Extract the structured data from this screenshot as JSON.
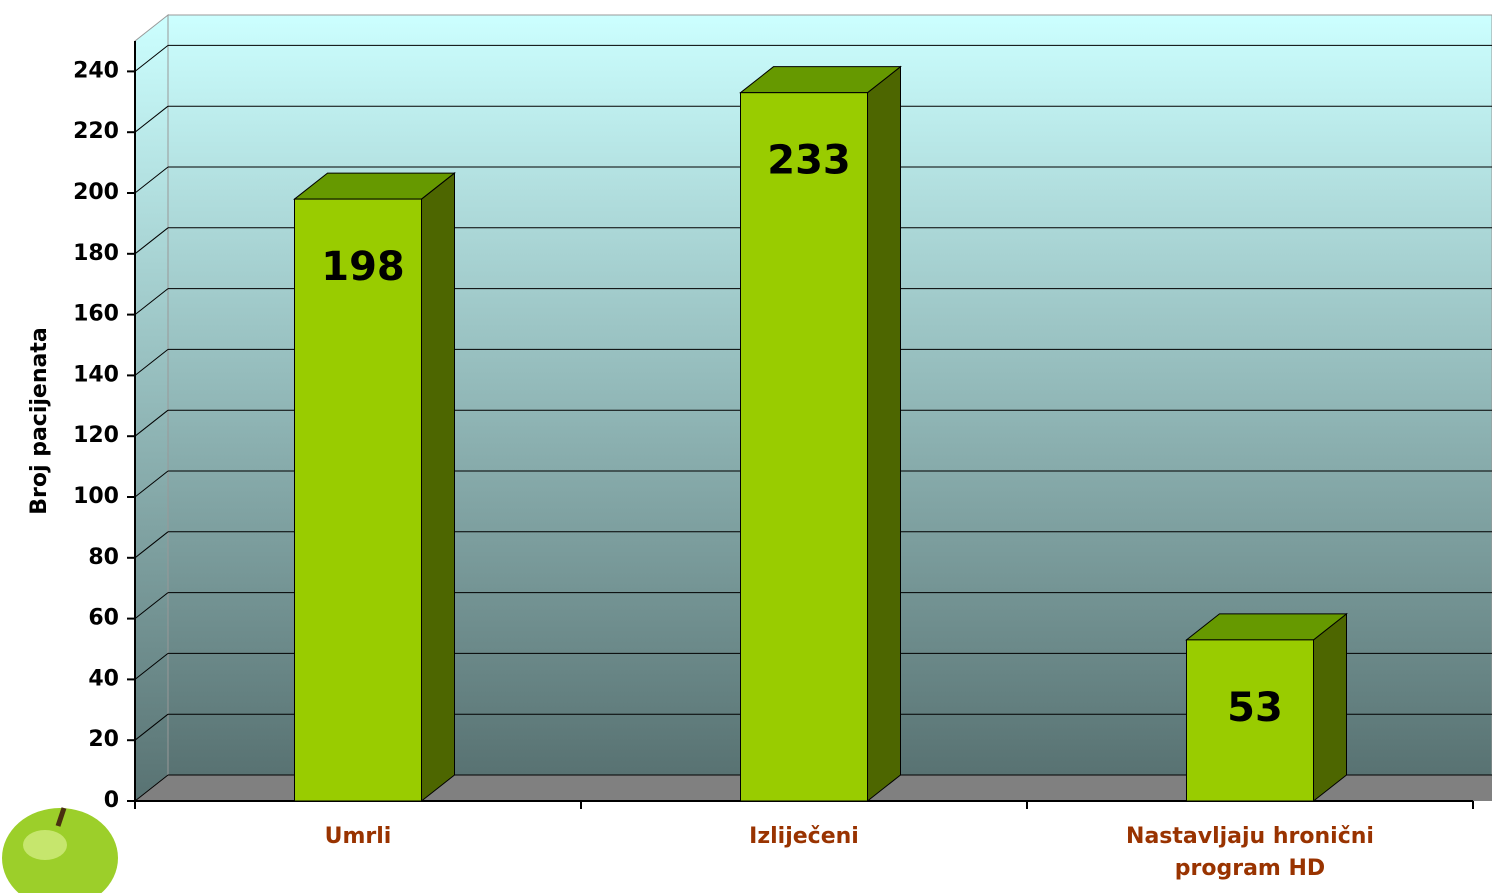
{
  "chart_data": {
    "type": "bar3d",
    "y_label": "Broj pacijenata",
    "categories": [
      "Umrli",
      "Izliječeni",
      "Nastavljaju hronični program HD"
    ],
    "values": [
      198,
      233,
      53
    ],
    "color": "#99cc00",
    "ylim": [
      0,
      250
    ],
    "yticks": [
      0,
      20,
      40,
      60,
      80,
      100,
      120,
      140,
      160,
      180,
      200,
      220,
      240
    ],
    "grid": true
  }
}
